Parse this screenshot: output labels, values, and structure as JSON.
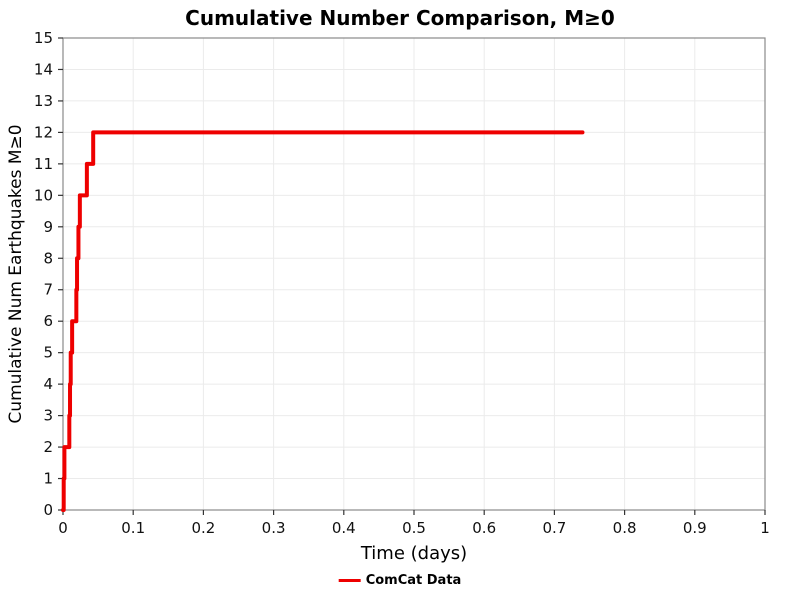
{
  "chart_data": {
    "type": "line",
    "title": "Cumulative Number Comparison, M≥0",
    "xlabel": "Time (days)",
    "ylabel": "Cumulative Num Earthquakes M≥0",
    "xlim": [
      0,
      1
    ],
    "ylim": [
      0,
      15
    ],
    "grid": true,
    "x_ticks": [
      0,
      0.1,
      0.2,
      0.3,
      0.4,
      0.5,
      0.6,
      0.7,
      0.8,
      0.9,
      1
    ],
    "x_tick_labels": [
      "0",
      "0.1",
      "0.2",
      "0.3",
      "0.4",
      "0.5",
      "0.6",
      "0.7",
      "0.8",
      "0.9",
      "1"
    ],
    "y_ticks": [
      0,
      1,
      2,
      3,
      4,
      5,
      6,
      7,
      8,
      9,
      10,
      11,
      12,
      13,
      14,
      15
    ],
    "legend_position": "bottom-center",
    "series": [
      {
        "name": "ComCat Data",
        "color": "#ee0000",
        "line_width": 4,
        "step": true,
        "points": [
          [
            0.0,
            0
          ],
          [
            0.001,
            1
          ],
          [
            0.002,
            2
          ],
          [
            0.008,
            2
          ],
          [
            0.009,
            3
          ],
          [
            0.01,
            4
          ],
          [
            0.011,
            5
          ],
          [
            0.013,
            6
          ],
          [
            0.018,
            6
          ],
          [
            0.019,
            7
          ],
          [
            0.02,
            8
          ],
          [
            0.022,
            9
          ],
          [
            0.024,
            10
          ],
          [
            0.033,
            10
          ],
          [
            0.034,
            11
          ],
          [
            0.04,
            11
          ],
          [
            0.043,
            12
          ],
          [
            0.74,
            12
          ]
        ]
      }
    ]
  },
  "colors": {
    "grid": "#ebebeb",
    "frame": "#8a8a8a",
    "tick": "#333333",
    "text": "#111111"
  }
}
